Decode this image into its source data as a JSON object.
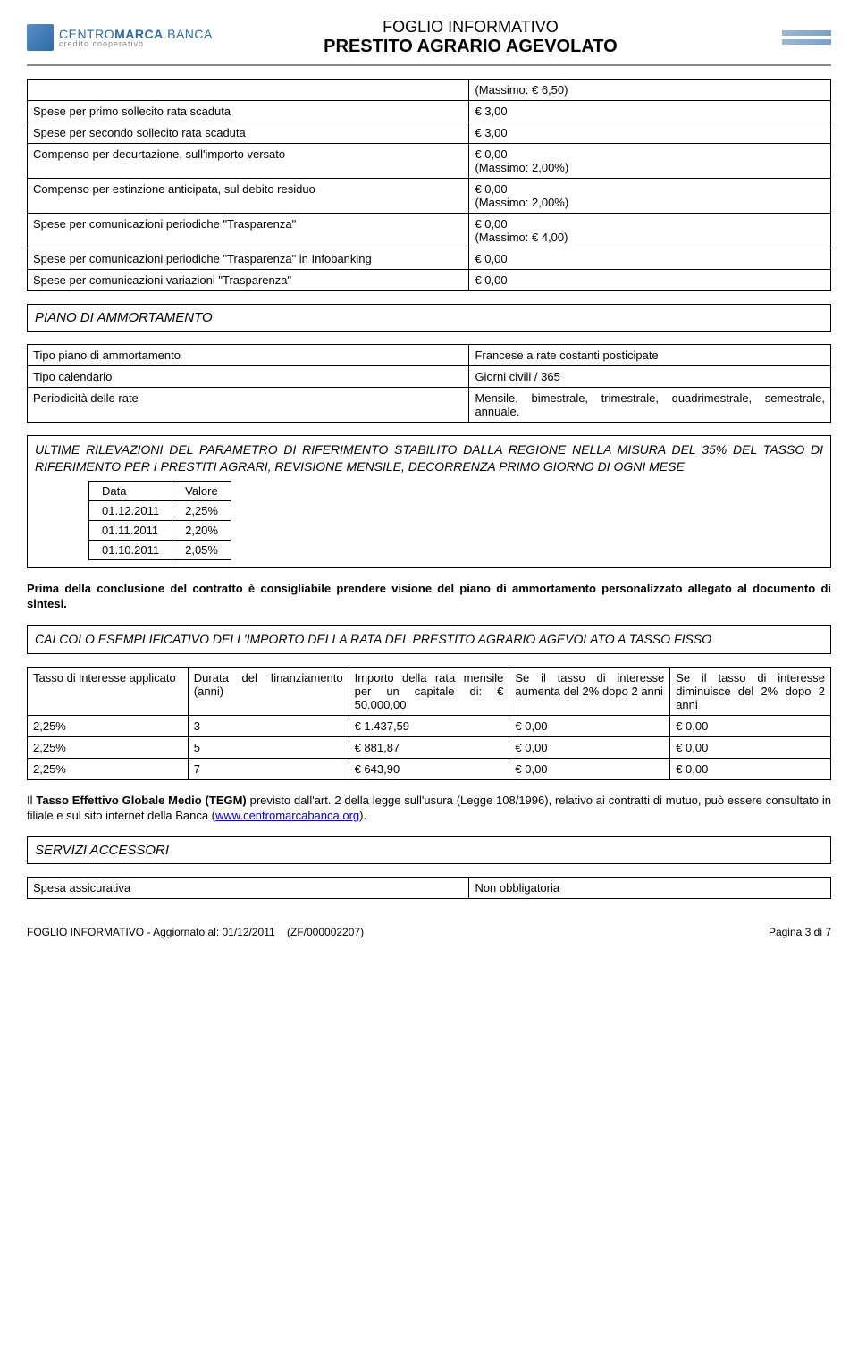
{
  "header": {
    "logo_main_1": "CENTRO",
    "logo_main_2": "MARCA",
    "logo_main_3": " BANCA",
    "logo_sub": "credito cooperativo",
    "title_top": "FOGLIO INFORMATIVO",
    "title_main": "PRESTITO AGRARIO AGEVOLATO"
  },
  "fees": {
    "rows": [
      {
        "label": "",
        "val": "(Massimo: € 6,50)"
      },
      {
        "label": "Spese per primo sollecito rata scaduta",
        "val": "€ 3,00"
      },
      {
        "label": "Spese per secondo sollecito rata scaduta",
        "val": "€ 3,00"
      },
      {
        "label": "Compenso per decurtazione, sull'importo versato",
        "val": "€ 0,00\n(Massimo: 2,00%)"
      },
      {
        "label": "Compenso per estinzione anticipata, sul debito residuo",
        "val": "€ 0,00\n(Massimo: 2,00%)"
      },
      {
        "label": "Spese per comunicazioni periodiche \"Trasparenza\"",
        "val": "€ 0,00\n(Massimo: € 4,00)"
      },
      {
        "label": "Spese per comunicazioni periodiche \"Trasparenza\" in Infobanking",
        "val": "€ 0,00"
      },
      {
        "label": "Spese per comunicazioni variazioni \"Trasparenza\"",
        "val": "€ 0,00"
      }
    ]
  },
  "piano": {
    "title": "PIANO DI AMMORTAMENTO",
    "rows": [
      {
        "label": "Tipo piano di ammortamento",
        "val": "Francese a rate costanti posticipate"
      },
      {
        "label": "Tipo calendario",
        "val": "Giorni civili / 365"
      },
      {
        "label": "Periodicità delle rate",
        "val": "Mensile, bimestrale, trimestrale, quadrimestrale, semestrale, annuale."
      }
    ]
  },
  "rilevazioni": {
    "text": "ULTIME RILEVAZIONI DEL PARAMETRO DI RIFERIMENTO STABILITO DALLA REGIONE NELLA MISURA DEL 35% DEL TASSO DI RIFERIMENTO PER I PRESTITI AGRARI, REVISIONE MENSILE, DECORRENZA PRIMO GIORNO DI OGNI MESE",
    "col1": "Data",
    "col2": "Valore",
    "rows": [
      {
        "d": "01.12.2011",
        "v": "2,25%"
      },
      {
        "d": "01.11.2011",
        "v": "2,20%"
      },
      {
        "d": "01.10.2011",
        "v": "2,05%"
      }
    ]
  },
  "advice": "Prima della conclusione del contratto è consigliabile prendere visione del piano di ammortamento personalizzato allegato al documento di sintesi.",
  "calc": {
    "title": "CALCOLO ESEMPLIFICATIVO DELL'IMPORTO DELLA RATA DEL PRESTITO AGRARIO AGEVOLATO A TASSO FISSO",
    "headers": [
      "Tasso di interesse applicato",
      "Durata del finanziamento (anni)",
      "Importo della rata mensile per un capitale di: € 50.000,00",
      "Se il tasso di interesse aumenta del 2% dopo 2 anni",
      "Se il tasso di interesse diminuisce del 2% dopo 2 anni"
    ],
    "rows": [
      [
        "2,25%",
        "3",
        "€ 1.437,59",
        "€ 0,00",
        "€ 0,00"
      ],
      [
        "2,25%",
        "5",
        "€ 881,87",
        "€ 0,00",
        "€ 0,00"
      ],
      [
        "2,25%",
        "7",
        "€ 643,90",
        "€ 0,00",
        "€ 0,00"
      ]
    ]
  },
  "tegm": {
    "prefix": "Il ",
    "bold": "Tasso Effettivo Globale Medio (TEGM)",
    "rest": " previsto dall'art. 2 della legge sull'usura (Legge 108/1996), relativo ai contratti di mutuo, può essere consultato in filiale e sul sito internet della Banca (",
    "link": "www.centromarcabanca.org",
    "after": ")."
  },
  "servizi": {
    "title": "SERVIZI ACCESSORI",
    "label": "Spesa assicurativa",
    "val": "Non obbligatoria"
  },
  "footer": {
    "left": "FOGLIO INFORMATIVO - Aggiornato al: 01/12/2011",
    "mid": "(ZF/000002207)",
    "right": "Pagina 3 di 7"
  }
}
